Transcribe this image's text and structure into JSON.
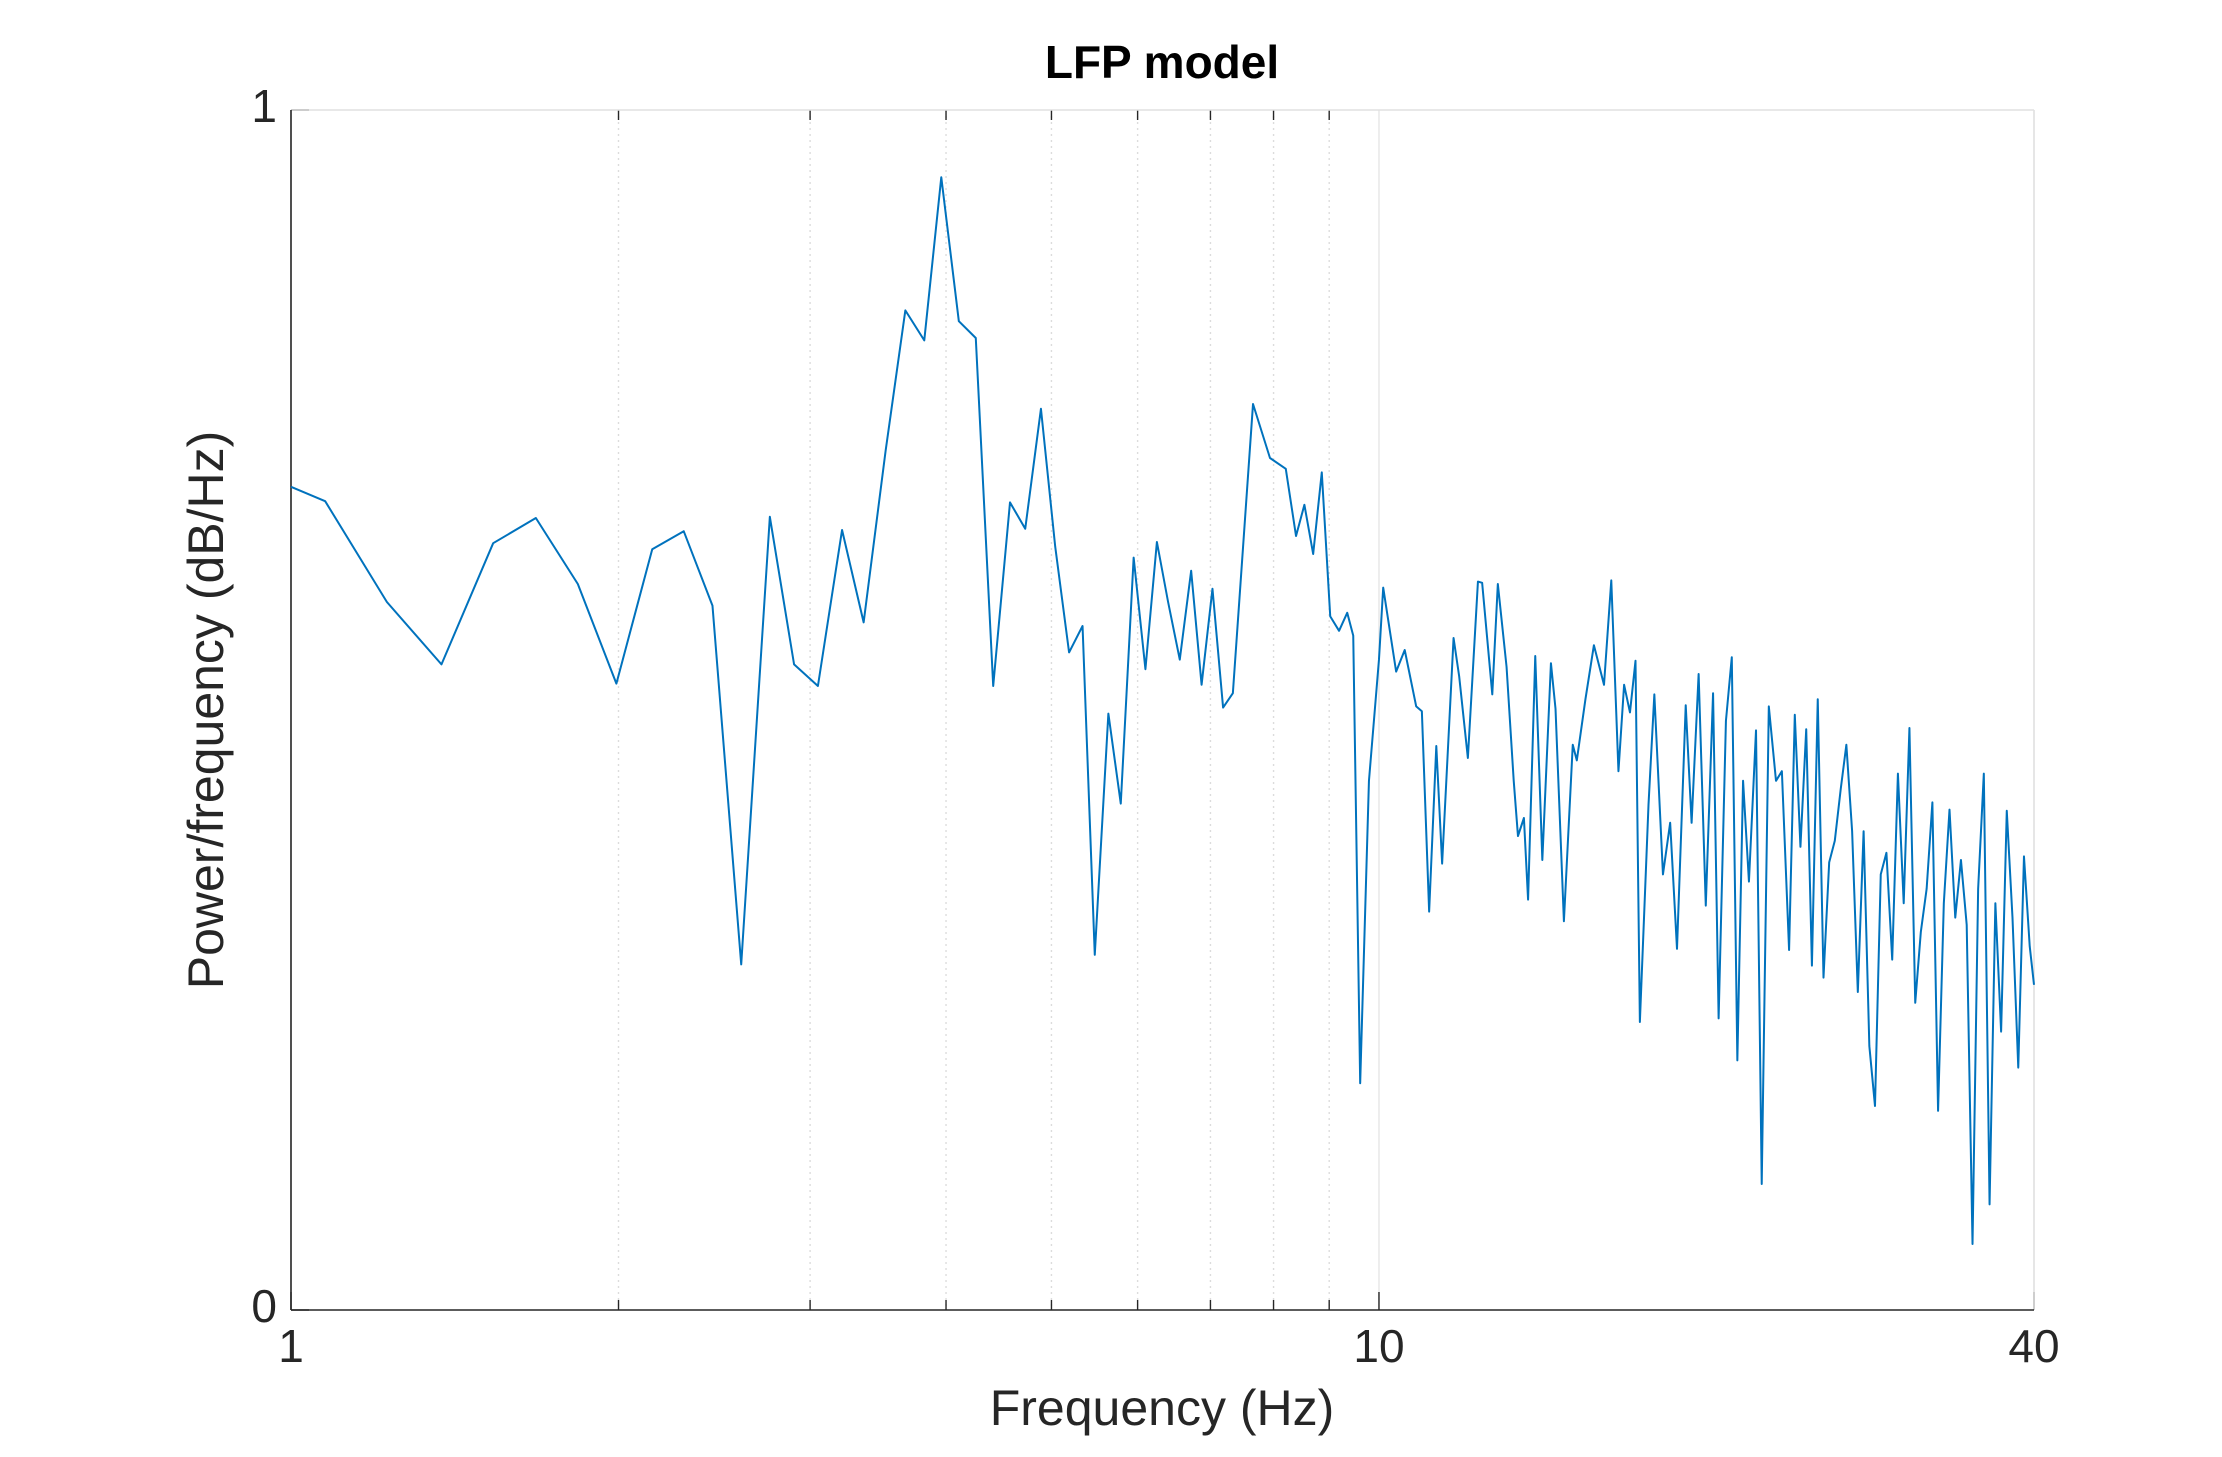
{
  "chart_data": {
    "type": "line",
    "title": "LFP model",
    "x_label": "Frequency (Hz)",
    "y_label": "Power/frequency (dB/Hz)",
    "xscale": "log",
    "xlim": [
      1,
      40
    ],
    "xticks": [
      1,
      10,
      40
    ],
    "xminorticks": [
      2,
      3,
      4,
      5,
      6,
      7,
      8,
      9
    ],
    "ylim": [
      0,
      1
    ],
    "yticks": [
      0,
      1
    ],
    "xgrid": true,
    "xminorgrid": true,
    "color": "#0072bd",
    "x": [
      1,
      1.075,
      1.225,
      1.375,
      1.534,
      1.679,
      1.835,
      1.991,
      2.148,
      2.296,
      2.44,
      2.593,
      2.755,
      2.9,
      3.05,
      3.21,
      3.36,
      3.52,
      3.67,
      3.82,
      3.96,
      4.11,
      4.26,
      4.42,
      4.58,
      4.73,
      4.89,
      5.04,
      5.19,
      5.34,
      5.48,
      5.64,
      5.79,
      5.95,
      6.1,
      6.25,
      6.4,
      6.56,
      6.72,
      6.87,
      7.03,
      7.19,
      7.34,
      7.66,
      7.94,
      8.21,
      8.39,
      8.54,
      8.7,
      8.86,
      9.02,
      9.19,
      9.35,
      9.47,
      9.61,
      9.79,
      10.0,
      10.09,
      10.37,
      10.56,
      10.82,
      10.95,
      11.12,
      11.29,
      11.43,
      11.71,
      11.85,
      12.07,
      12.33,
      12.44,
      12.71,
      12.86,
      13.1,
      13.3,
      13.42,
      13.59,
      13.71,
      13.92,
      14.13,
      14.39,
      14.53,
      14.79,
      15.07,
      15.2,
      15.48,
      15.76,
      16.1,
      16.35,
      16.6,
      16.8,
      17.01,
      17.21,
      17.37,
      17.69,
      17.91,
      18.24,
      18.52,
      18.79,
      19.14,
      19.38,
      19.67,
      19.97,
      20.28,
      20.52,
      20.84,
      21.1,
      21.35,
      21.61,
      21.88,
      22.21,
      22.48,
      22.82,
      23.17,
      23.46,
      23.82,
      24.11,
      24.4,
      24.7,
      25.0,
      25.31,
      25.62,
      25.93,
      26.24,
      26.57,
      26.89,
      27.22,
      27.55,
      27.89,
      28.23,
      28.57,
      28.92,
      29.27,
      29.63,
      29.99,
      30.36,
      30.73,
      31.11,
      31.48,
      31.87,
      32.26,
      32.65,
      33.05,
      33.45,
      33.86,
      34.27,
      34.69,
      35.12,
      35.54,
      35.97,
      36.41,
      36.86,
      37.31,
      37.76,
      38.22,
      38.69,
      39.16,
      39.64,
      40.0
    ],
    "values": [
      0.686,
      0.674,
      0.59,
      0.538,
      0.639,
      0.66,
      0.605,
      0.522,
      0.634,
      0.649,
      0.587,
      0.288,
      0.661,
      0.538,
      0.52,
      0.65,
      0.573,
      0.716,
      0.833,
      0.808,
      0.944,
      0.824,
      0.81,
      0.52,
      0.673,
      0.651,
      0.751,
      0.636,
      0.548,
      0.57,
      0.296,
      0.497,
      0.422,
      0.627,
      0.534,
      0.64,
      0.59,
      0.542,
      0.616,
      0.521,
      0.601,
      0.502,
      0.514,
      0.755,
      0.71,
      0.701,
      0.645,
      0.671,
      0.63,
      0.698,
      0.578,
      0.566,
      0.581,
      0.562,
      0.189,
      0.441,
      0.542,
      0.602,
      0.532,
      0.55,
      0.503,
      0.499,
      0.332,
      0.47,
      0.372,
      0.56,
      0.528,
      0.46,
      0.607,
      0.606,
      0.513,
      0.605,
      0.536,
      0.441,
      0.395,
      0.41,
      0.342,
      0.545,
      0.375,
      0.539,
      0.501,
      0.324,
      0.471,
      0.458,
      0.509,
      0.554,
      0.521,
      0.608,
      0.449,
      0.521,
      0.498,
      0.541,
      0.24,
      0.421,
      0.513,
      0.363,
      0.406,
      0.301,
      0.504,
      0.406,
      0.53,
      0.337,
      0.514,
      0.243,
      0.491,
      0.544,
      0.208,
      0.441,
      0.357,
      0.483,
      0.105,
      0.503,
      0.441,
      0.449,
      0.3,
      0.496,
      0.386,
      0.484,
      0.287,
      0.509,
      0.277,
      0.373,
      0.391,
      0.434,
      0.471,
      0.399,
      0.265,
      0.399,
      0.22,
      0.17,
      0.363,
      0.381,
      0.292,
      0.447,
      0.339,
      0.485,
      0.256,
      0.315,
      0.351,
      0.423,
      0.166,
      0.339,
      0.417,
      0.327,
      0.375,
      0.321,
      0.055,
      0.351,
      0.447,
      0.088,
      0.339,
      0.232,
      0.416,
      0.327,
      0.202,
      0.378,
      0.303,
      0.271
    ]
  }
}
